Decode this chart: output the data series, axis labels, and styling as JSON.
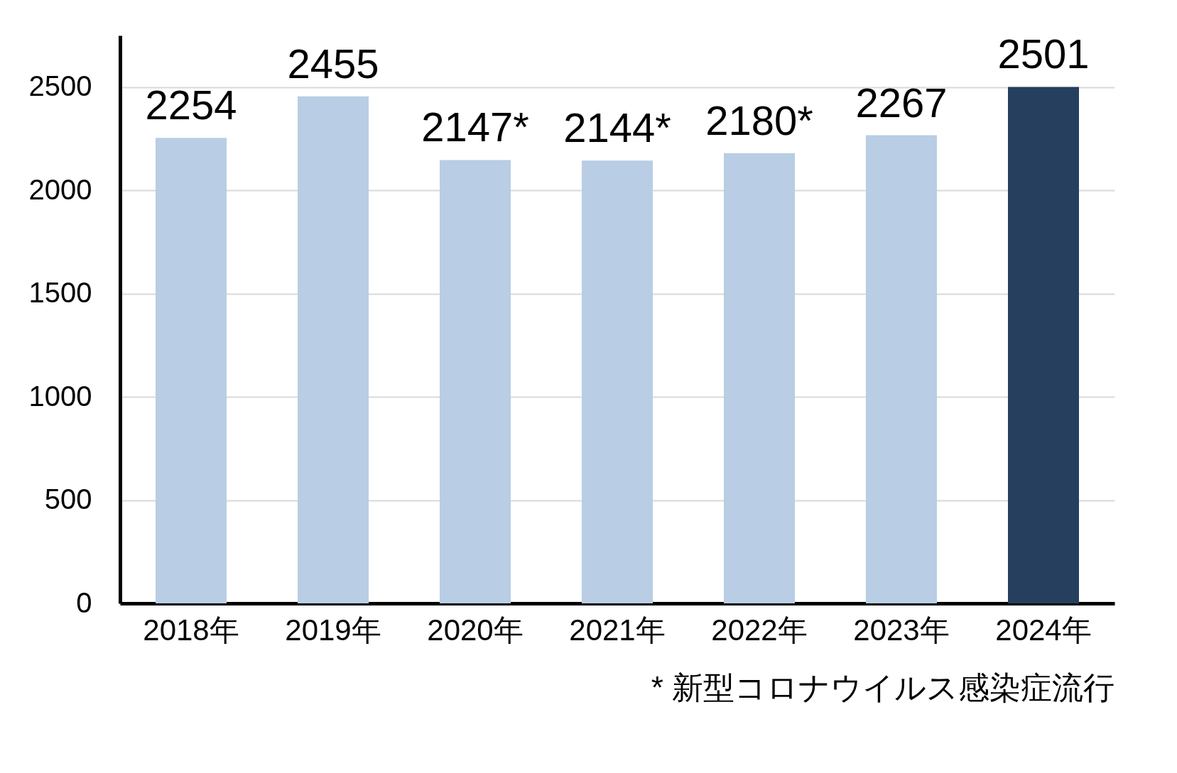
{
  "chart_data": {
    "type": "bar",
    "categories": [
      "2018年",
      "2019年",
      "2020年",
      "2021年",
      "2022年",
      "2023年",
      "2024年"
    ],
    "values": [
      2254,
      2455,
      2147,
      2144,
      2180,
      2267,
      2501
    ],
    "value_labels": [
      "2254",
      "2455",
      "2147*",
      "2144*",
      "2180*",
      "2267",
      "2501"
    ],
    "colors": [
      "#b9cde4",
      "#b9cde4",
      "#b9cde4",
      "#b9cde4",
      "#b9cde4",
      "#b9cde4",
      "#263f5f"
    ],
    "ylim": [
      0,
      2750
    ],
    "yticks": [
      0,
      500,
      1000,
      1500,
      2000,
      2500
    ],
    "grid": "y",
    "annotations": [
      "* 新型コロナウイルス感染症流行"
    ]
  }
}
